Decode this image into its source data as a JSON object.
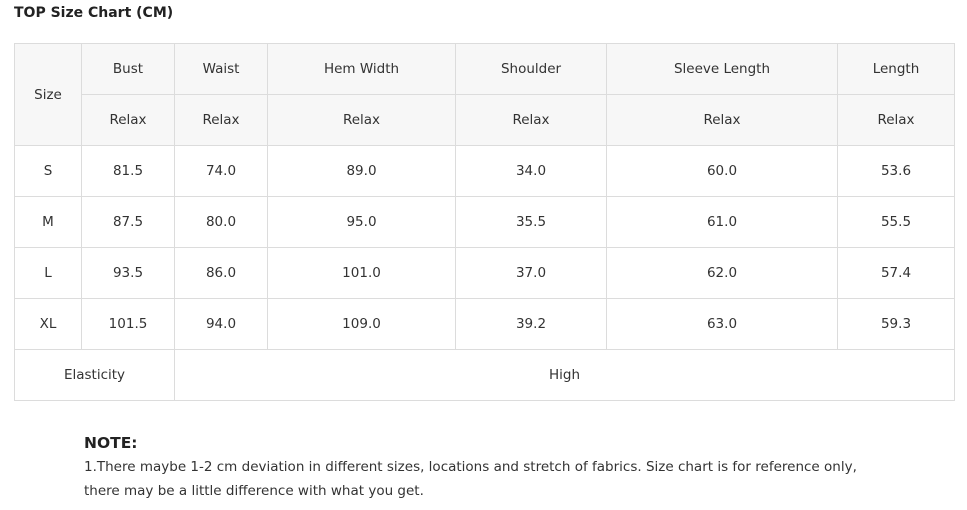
{
  "title": "TOP Size Chart (CM)",
  "table": {
    "size_header": "Size",
    "columns": [
      "Bust",
      "Waist",
      "Hem Width",
      "Shoulder",
      "Sleeve Length",
      "Length"
    ],
    "sub_header": [
      "Relax",
      "Relax",
      "Relax",
      "Relax",
      "Relax",
      "Relax"
    ],
    "rows": [
      [
        "S",
        "81.5",
        "74.0",
        "89.0",
        "34.0",
        "60.0",
        "53.6"
      ],
      [
        "M",
        "87.5",
        "80.0",
        "95.0",
        "35.5",
        "61.0",
        "55.5"
      ],
      [
        "L",
        "93.5",
        "86.0",
        "101.0",
        "37.0",
        "62.0",
        "57.4"
      ],
      [
        "XL",
        "101.5",
        "94.0",
        "109.0",
        "39.2",
        "63.0",
        "59.3"
      ]
    ],
    "footer": {
      "label": "Elasticity",
      "value": "High"
    }
  },
  "note": {
    "title": "NOTE:",
    "text": "1.There maybe 1-2 cm deviation in different sizes, locations and stretch of fabrics. Size chart is for reference only, there may be a little difference with what you get."
  }
}
